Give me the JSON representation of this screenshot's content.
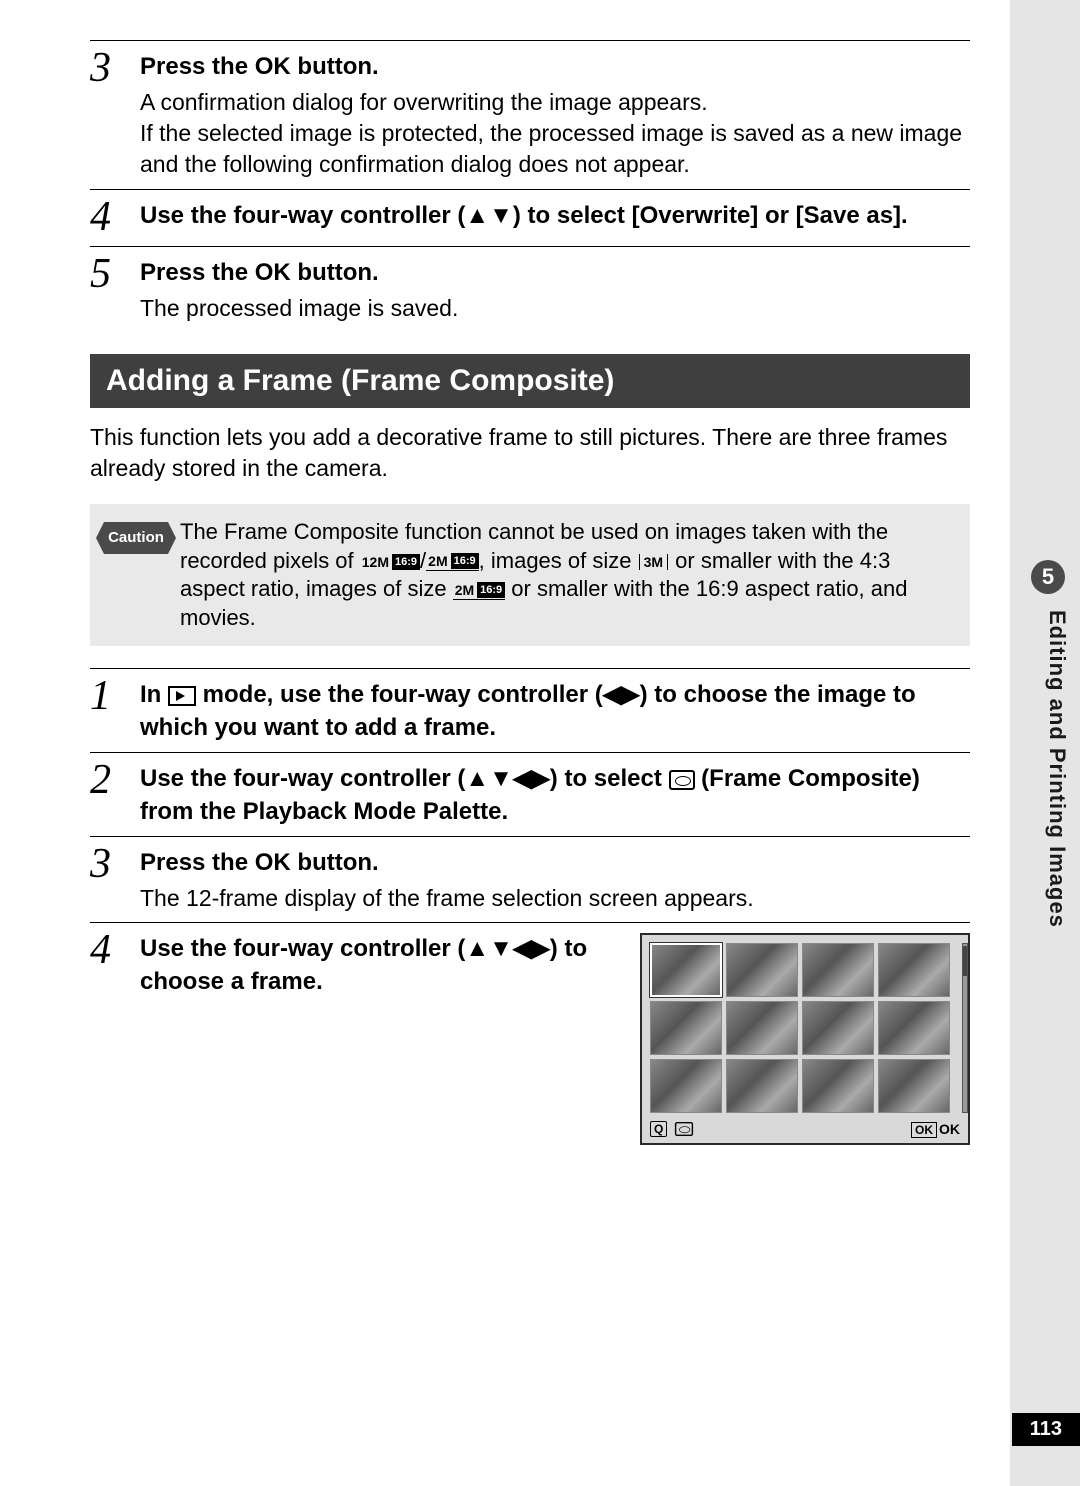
{
  "side": {
    "chapter_number": "5",
    "chapter_title": "Editing and Printing Images",
    "page_number": "113"
  },
  "top_steps": {
    "s3": {
      "num": "3",
      "title_a": "Press the ",
      "title_ok": "OK",
      "title_b": " button.",
      "desc": "A confirmation dialog for overwriting the image appears.\nIf the selected image is protected, the processed image is saved as a new image and the following confirmation dialog does not appear."
    },
    "s4": {
      "num": "4",
      "title": "Use the four-way controller (▲▼) to select [Overwrite] or [Save as]."
    },
    "s5": {
      "num": "5",
      "title_a": "Press the ",
      "title_ok": "OK",
      "title_b": " button.",
      "desc": "The processed image is saved."
    }
  },
  "section": {
    "header": "Adding a Frame (Frame Composite)",
    "desc": "This function lets you add a decorative frame to still pictures. There are three frames already stored in the camera."
  },
  "caution": {
    "badge": "Caution",
    "text_a": "The Frame Composite function cannot be used on images taken with the recorded pixels of ",
    "tag1": "12M",
    "tag1b": "16:9",
    "slash": "/",
    "tag2": "2M",
    "tag2b": "16:9",
    "text_b": ", images of size ",
    "tag3": "3M",
    "text_c": " or smaller with the 4:3 aspect ratio, images of size ",
    "tag4": "2M",
    "tag4b": "16:9",
    "text_d": " or smaller with the 16:9 aspect ratio, and movies."
  },
  "bottom_steps": {
    "s1": {
      "num": "1",
      "title_a": "In ",
      "title_b": " mode, use the four-way controller (◀▶) to choose the image to which you want to add a frame."
    },
    "s2": {
      "num": "2",
      "title_a": "Use the four-way controller (▲▼◀▶) to select ",
      "title_b": " (Frame Composite) from the Playback Mode Palette."
    },
    "s3": {
      "num": "3",
      "title_a": "Press the ",
      "title_ok": "OK",
      "title_b": " button.",
      "desc": "The 12-frame display of the frame selection screen appears."
    },
    "s4": {
      "num": "4",
      "title": "Use the four-way controller (▲▼◀▶) to choose a frame."
    }
  },
  "frame_screen": {
    "ok_box": "OK",
    "ok_label": "OK"
  }
}
